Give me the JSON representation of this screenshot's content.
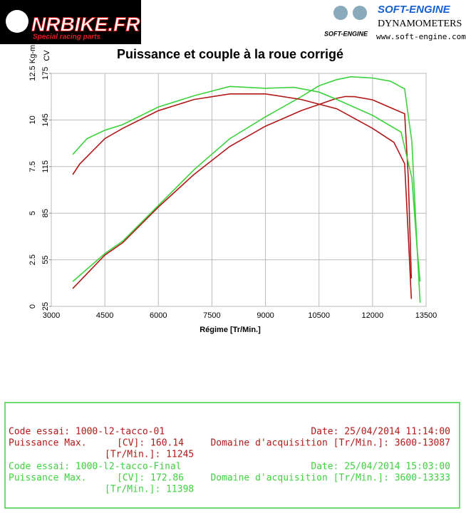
{
  "header": {
    "left_logo": "NRBIKE.FR",
    "left_tagline": "Special racing parts",
    "right_logo": "SOFT-ENGINE",
    "right_subtitle": "DYNAMOMETERS",
    "right_url": "www.soft-engine.com",
    "right_small": "SOFT-ENGINE"
  },
  "chart_data": {
    "type": "line",
    "title": "Puissance et couple à la roue corrigé",
    "xlabel": "Régime [Tr/Min.]",
    "ylabel": "CV",
    "y2label": "Kg-m",
    "xlim": [
      3000,
      13500
    ],
    "xticks": [
      3000,
      4500,
      6000,
      7500,
      9000,
      10500,
      12000,
      13500
    ],
    "ylim": [
      25,
      175
    ],
    "yticks": [
      25,
      55,
      85,
      115,
      145,
      175
    ],
    "y2lim": [
      0,
      12.5
    ],
    "y2ticks": [
      0,
      2.5,
      5,
      7.5,
      10,
      12.5
    ],
    "grid": true,
    "series": [
      {
        "color": "#b01818",
        "x": [
          3600,
          4500,
          5000,
          6000,
          7000,
          8000,
          9000,
          10000,
          10500,
          11000,
          11245,
          11500,
          12000,
          12500,
          12900,
          13000,
          13087
        ],
        "values": [
          36.5,
          58,
          66,
          89,
          110,
          128,
          141,
          151,
          155,
          159,
          160.14,
          160,
          158,
          153,
          149,
          108,
          43
        ]
      },
      {
        "color": "#3ed13e",
        "x": [
          3600,
          4500,
          5000,
          6000,
          7000,
          8000,
          9000,
          10000,
          10500,
          11000,
          11398,
          12000,
          12500,
          12900,
          13100,
          13250,
          13333
        ],
        "values": [
          41,
          59,
          67,
          90,
          113,
          133,
          147,
          160,
          167,
          171,
          172.86,
          172,
          170,
          165,
          131,
          62,
          41
        ]
      },
      {
        "color": "#b01818",
        "axis": "y2",
        "x": [
          3600,
          3800,
          4500,
          5000,
          6000,
          7000,
          8000,
          9000,
          10000,
          11000,
          12000,
          12600,
          12900,
          13000,
          13087
        ],
        "values": [
          7.07,
          7.65,
          9.0,
          9.55,
          10.5,
          11.1,
          11.4,
          11.4,
          11.1,
          10.6,
          9.55,
          8.8,
          7.65,
          3.8,
          0.4
        ]
      },
      {
        "color": "#3ed13e",
        "axis": "y2",
        "x": [
          3600,
          4000,
          4500,
          5000,
          6000,
          7000,
          8000,
          9000,
          9800,
          10500,
          11000,
          12000,
          12800,
          13100,
          13250,
          13333
        ],
        "values": [
          8.15,
          9.0,
          9.45,
          9.75,
          10.7,
          11.3,
          11.8,
          11.7,
          11.75,
          11.5,
          11.1,
          10.25,
          9.35,
          6.9,
          3.05,
          0.2
        ]
      }
    ]
  },
  "tests": [
    {
      "code": "Code essai: 1000-l2-tacco-01",
      "date": "Date: 25/04/2014 11:14:00",
      "power_label": "Puissance Max.",
      "power": "[CV]: 160.14",
      "domain": "Domaine d'acquisition [Tr/Min.]: 3600-13087",
      "rpm": "[Tr/Min.]: 11245"
    },
    {
      "code": "Code essai: 1000-l2-tacco-Final",
      "date": "Date: 25/04/2014 15:03:00",
      "power_label": "Puissance Max.",
      "power": "[CV]: 172.86",
      "domain": "Domaine d'acquisition [Tr/Min.]: 3600-13333",
      "rpm": "[Tr/Min.]: 11398"
    }
  ]
}
